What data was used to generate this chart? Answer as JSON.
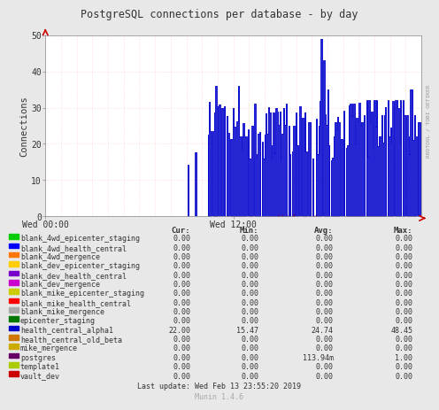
{
  "title": "PostgreSQL connections per database - by day",
  "ylabel": "Connections",
  "right_label": "RRDTOOL / TOBI OETIKER",
  "yticks": [
    0,
    10,
    20,
    30,
    40,
    50
  ],
  "ylim": [
    0,
    50
  ],
  "bg_color": "#e8e8e8",
  "plot_bg_color": "#ffffff",
  "red_grid_color": "#ffbbbb",
  "x_labels": [
    "Wed 00:00",
    "Wed 12:00"
  ],
  "arrow_color": "#cc0000",
  "main_line_color": "#0000cc",
  "legend_entries": [
    {
      "name": "blank_4wd_epicenter_staging",
      "color": "#00cc00",
      "cur": "0.00",
      "min": "0.00",
      "avg": "0.00",
      "max": "0.00"
    },
    {
      "name": "blank_4wd_health_central",
      "color": "#0000ff",
      "cur": "0.00",
      "min": "0.00",
      "avg": "0.00",
      "max": "0.00"
    },
    {
      "name": "blank_4wd_mergence",
      "color": "#ff7700",
      "cur": "0.00",
      "min": "0.00",
      "avg": "0.00",
      "max": "0.00"
    },
    {
      "name": "blank_dev_epicenter_staging",
      "color": "#ffcc00",
      "cur": "0.00",
      "min": "0.00",
      "avg": "0.00",
      "max": "0.00"
    },
    {
      "name": "blank_dev_health_central",
      "color": "#7700cc",
      "cur": "0.00",
      "min": "0.00",
      "avg": "0.00",
      "max": "0.00"
    },
    {
      "name": "blank_dev_mergence",
      "color": "#cc00cc",
      "cur": "0.00",
      "min": "0.00",
      "avg": "0.00",
      "max": "0.00"
    },
    {
      "name": "blank_mike_epicenter_staging",
      "color": "#cccc00",
      "cur": "0.00",
      "min": "0.00",
      "avg": "0.00",
      "max": "0.00"
    },
    {
      "name": "blank_mike_health_central",
      "color": "#ff0000",
      "cur": "0.00",
      "min": "0.00",
      "avg": "0.00",
      "max": "0.00"
    },
    {
      "name": "blank_mike_mergence",
      "color": "#aaaaaa",
      "cur": "0.00",
      "min": "0.00",
      "avg": "0.00",
      "max": "0.00"
    },
    {
      "name": "epicenter_staging",
      "color": "#007700",
      "cur": "0.00",
      "min": "0.00",
      "avg": "0.00",
      "max": "0.00"
    },
    {
      "name": "health_central_alpha1",
      "color": "#0000cc",
      "cur": "22.00",
      "min": "15.47",
      "avg": "24.74",
      "max": "48.45"
    },
    {
      "name": "health_central_old_beta",
      "color": "#cc7700",
      "cur": "0.00",
      "min": "0.00",
      "avg": "0.00",
      "max": "0.00"
    },
    {
      "name": "mike_mergence",
      "color": "#ccaa00",
      "cur": "0.00",
      "min": "0.00",
      "avg": "0.00",
      "max": "0.00"
    },
    {
      "name": "postgres",
      "color": "#660066",
      "cur": "0.00",
      "min": "0.00",
      "avg": "113.94m",
      "max": "1.00"
    },
    {
      "name": "template1",
      "color": "#aacc00",
      "cur": "0.00",
      "min": "0.00",
      "avg": "0.00",
      "max": "0.00"
    },
    {
      "name": "vault_dev",
      "color": "#cc0000",
      "cur": "0.00",
      "min": "0.00",
      "avg": "0.00",
      "max": "0.00"
    }
  ],
  "footer": "Last update: Wed Feb 13 23:55:20 2019",
  "munin_label": "Munin 1.4.6"
}
